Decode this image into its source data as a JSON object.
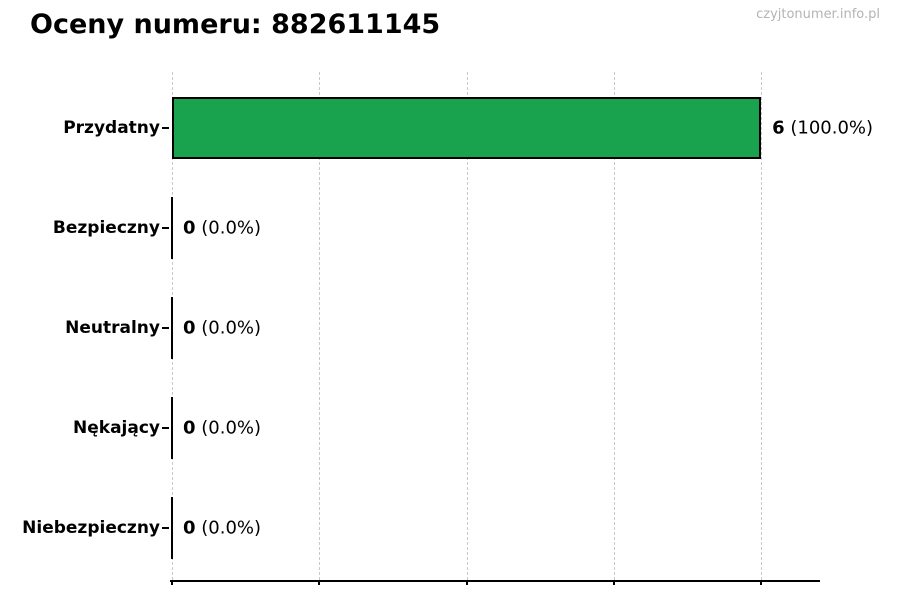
{
  "header": {
    "title": "Oceny numeru: 882611145",
    "watermark": "czyjtonumer.info.pl"
  },
  "chart_data": {
    "type": "bar",
    "orientation": "horizontal",
    "title": "Oceny numeru: 882611145",
    "watermark": "czyjtonumer.info.pl",
    "categories": [
      "Przydatny",
      "Bezpieczny",
      "Neutralny",
      "Nękający",
      "Niebezpieczny"
    ],
    "values": [
      6,
      0,
      0,
      0,
      0
    ],
    "percent_labels": [
      "(100.0%)",
      "(0.0%)",
      "(0.0%)",
      "(0.0%)",
      "(0.0%)"
    ],
    "value_labels": [
      "6 (100.0%)",
      "0 (0.0%)",
      "0 (0.0%)",
      "0 (0.0%)",
      "0 (0.0%)"
    ],
    "xlabel": "",
    "ylabel": "",
    "xlim": [
      0,
      6.6
    ],
    "xticks": [
      0,
      1.5,
      3,
      4.5,
      6
    ],
    "xtick_labels_visible": false,
    "grid": true,
    "legend": "none",
    "colors": {
      "bar_fill": "#1aa34e",
      "bar_edge": "#000000",
      "gridline": "#c8c8c8",
      "axis": "#000000",
      "text": "#000000",
      "watermark": "#b4b4b4"
    }
  }
}
